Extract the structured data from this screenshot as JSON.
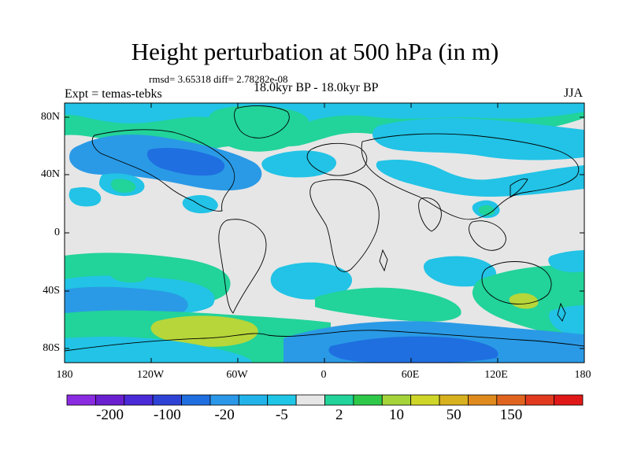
{
  "header": {
    "title": "Height perturbation at 500 hPa (in m)",
    "stats": "rmsd= 3.65318 diff= 2.78282e-08",
    "experiment": "Expt = temas-tebks",
    "period": "18.0kyr BP - 18.0kyr BP",
    "season": "JJA"
  },
  "axes": {
    "lat_labels": [
      "80N",
      "40N",
      "0",
      "40S",
      "80S"
    ],
    "lon_labels": [
      "180",
      "120W",
      "60W",
      "0",
      "60E",
      "120E",
      "180"
    ]
  },
  "colorbar": {
    "colors": [
      "#8a2be2",
      "#6a1fd0",
      "#4b2ad8",
      "#2e43d6",
      "#1f6fe0",
      "#2a97e8",
      "#22b3ea",
      "#1fc6e6",
      "#e6e6e6",
      "#22d39a",
      "#2fc94a",
      "#a4d43a",
      "#d0d628",
      "#d8b11e",
      "#e08a1e",
      "#e0641e",
      "#e23a1e",
      "#e01818"
    ],
    "labels": [
      "-200",
      "-100",
      "-20",
      "-5",
      "2",
      "10",
      "50",
      "150"
    ],
    "map_colors": {
      "background": "#e6e6e6",
      "cyan": "#22c3e6",
      "light_blue": "#2a9ae6",
      "blue": "#1f6fe0",
      "green": "#22d39a",
      "bright_green": "#2fc94a",
      "yellow_green": "#b7d63a"
    }
  }
}
